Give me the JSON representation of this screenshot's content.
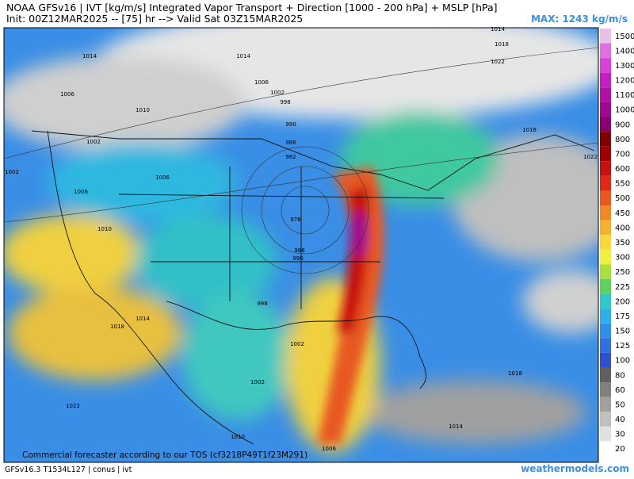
{
  "header": {
    "title": "NOAA GFSv16 | IVT [kg/m/s] Integrated Vapor Transport + Direction [1000 - 200 hPa] + MSLP [hPa]",
    "subtitle": "Init: 00Z12MAR2025 -- [75] hr --> Valid Sat 03Z15MAR2025",
    "max": "MAX: 1243 kg/m/s"
  },
  "colorbar": {
    "labels": [
      "1500",
      "1400",
      "1300",
      "1200",
      "1100",
      "1000",
      "900",
      "800",
      "700",
      "600",
      "550",
      "500",
      "450",
      "400",
      "350",
      "300",
      "250",
      "225",
      "200",
      "175",
      "150",
      "125",
      "100",
      "80",
      "60",
      "50",
      "40",
      "30",
      "20"
    ],
    "colors": [
      "#e8c0e8",
      "#e070e0",
      "#d840d8",
      "#c020c0",
      "#b010a8",
      "#a00890",
      "#880070",
      "#800000",
      "#a00000",
      "#c81010",
      "#e02818",
      "#e85820",
      "#f08828",
      "#f8b030",
      "#f8d838",
      "#f0f040",
      "#a8e040",
      "#60d060",
      "#30c8c8",
      "#30b0e8",
      "#3090e8",
      "#3070e0",
      "#3050d0",
      "#606060",
      "#808080",
      "#a0a0a0",
      "#c0c0c0",
      "#e0e0e0",
      "#ffffff"
    ]
  },
  "isobar_labels": [
    "1014",
    "1014",
    "1006",
    "1010",
    "1006",
    "1002",
    "998",
    "990",
    "986",
    "982",
    "1002",
    "1002",
    "1006",
    "1006",
    "1010",
    "978",
    "986",
    "990",
    "998",
    "1018",
    "1014",
    "1002",
    "1002",
    "1022",
    "1010",
    "1006",
    "1014",
    "1018",
    "1018",
    "1022",
    "1014",
    "1018",
    "1022"
  ],
  "watermark": "Commercial forecaster according to our TOS (cf3218P49T1f23M291)",
  "footer": {
    "model": "GFSv16.3 T1534L127 | conus | ivt",
    "site": "weathermodels.com"
  }
}
